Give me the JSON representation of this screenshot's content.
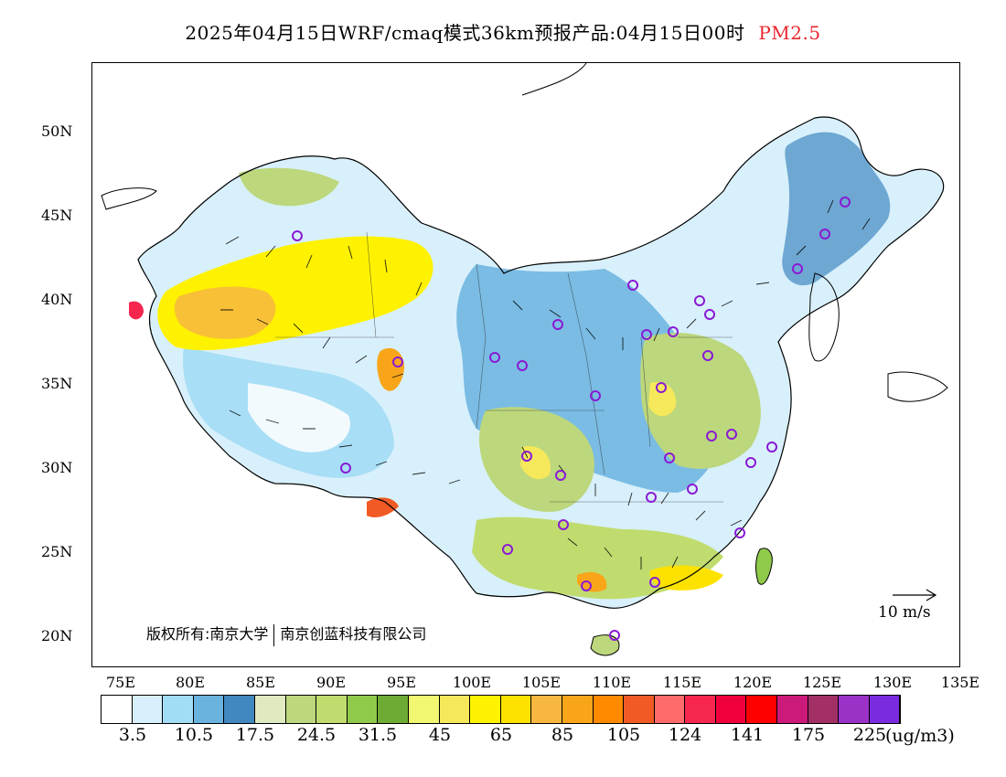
{
  "title": {
    "main": "2025年04月15日WRF/cmaq模式36km预报产品:04月15日00时",
    "variable": "PM2.5"
  },
  "map": {
    "lat_labels": [
      "50N",
      "45N",
      "40N",
      "35N",
      "30N",
      "25N",
      "20N"
    ],
    "lon_labels": [
      "75E",
      "80E",
      "85E",
      "90E",
      "95E",
      "100E",
      "105E",
      "110E",
      "115E",
      "120E",
      "125E",
      "130E",
      "135E"
    ],
    "copyright_left": "版权所有:南京大学",
    "copyright_right": "南京创蓝科技有限公司",
    "reference_vector": "10 m/s"
  },
  "colorbar": {
    "colors": [
      "#ffffff",
      "#d8f0fb",
      "#a3dcf5",
      "#6ab3df",
      "#4188c0",
      "#dfeac0",
      "#bcd77c",
      "#c0dc6e",
      "#8fca4a",
      "#6eab34",
      "#f1f771",
      "#f5e85a",
      "#fff200",
      "#fde200",
      "#f7b740",
      "#f9a51a",
      "#ff8a00",
      "#f15a24",
      "#ff6b6b",
      "#f7264f",
      "#f0003c",
      "#ff0000",
      "#cc1a7a",
      "#a23067",
      "#9b32c8",
      "#7a2be0"
    ],
    "labels": [
      "3.5",
      "10.5",
      "17.5",
      "24.5",
      "31.5",
      "45",
      "65",
      "85",
      "105",
      "124",
      "141",
      "175",
      "225"
    ],
    "unit": "(ug/m3)"
  }
}
